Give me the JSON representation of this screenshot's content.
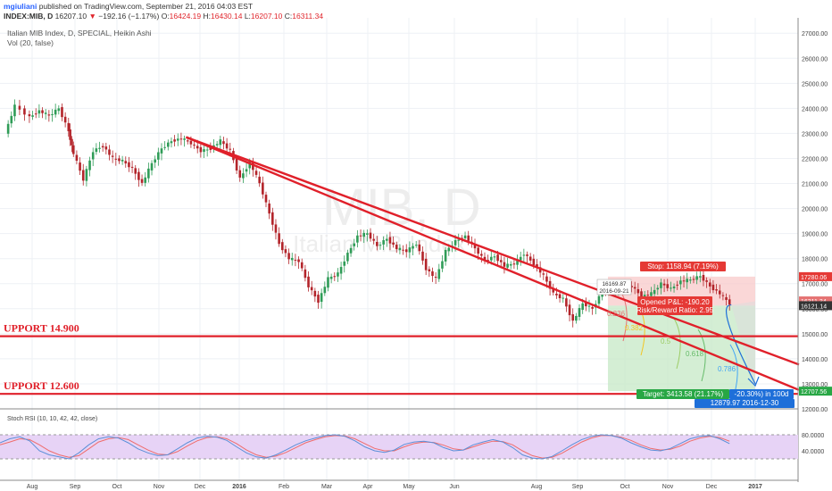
{
  "header": {
    "author": "mgiuliani",
    "published": "published on TradingView.com, September 21, 2016 04:03 EST",
    "symbol": "INDEX:MIB, D",
    "arrow": "▼",
    "change": "−192.16 (−1.17%)",
    "ohlc": {
      "o_label": "O:",
      "o": "16424.19",
      "h_label": "H:",
      "h": "16430.14",
      "l_label": "L:",
      "l": "16207.10",
      "c_label": "C:",
      "c": "16311.34"
    },
    "last": "16207.10"
  },
  "legend": {
    "title": "Italian MIB Index, D, SPECIAL, Heikin Ashi",
    "volume": "Vol (20, false)"
  },
  "watermark": {
    "symbol": "MIB, D",
    "name": "Italian MIB Index"
  },
  "colors": {
    "up": "#2f9c57",
    "down": "#b3242a",
    "line": "#e0202a",
    "target": "#28a745",
    "stop": "#e53935"
  },
  "chart_data": {
    "type": "candlestick",
    "ylim": [
      12000,
      27400
    ],
    "y_ticks": [
      "27000.00",
      "26000.00",
      "25000.00",
      "24000.00",
      "23000.00",
      "22000.00",
      "21000.00",
      "20000.00",
      "19000.00",
      "18000.00",
      "17000.00",
      "16000.00",
      "15000.00",
      "14000.00",
      "13000.00",
      "12000.00"
    ],
    "x_ticks": [
      "Aug",
      "Sep",
      "Oct",
      "Nov",
      "Dec",
      "2016",
      "Feb",
      "Mar",
      "Apr",
      "May",
      "Jun",
      "Aug",
      "Sep",
      "Oct",
      "Nov",
      "Dec",
      "2017"
    ],
    "price_path": [
      [
        2015.58,
        23000
      ],
      [
        2015.6,
        24100
      ],
      [
        2015.63,
        23650
      ],
      [
        2015.65,
        23900
      ],
      [
        2015.67,
        23700
      ],
      [
        2015.69,
        24000
      ],
      [
        2015.71,
        23100
      ],
      [
        2015.72,
        22200
      ],
      [
        2015.74,
        21150
      ],
      [
        2015.76,
        22300
      ],
      [
        2015.78,
        22500
      ],
      [
        2015.8,
        22000
      ],
      [
        2015.82,
        21900
      ],
      [
        2015.84,
        21600
      ],
      [
        2015.86,
        21000
      ],
      [
        2015.88,
        21800
      ],
      [
        2015.9,
        22400
      ],
      [
        2015.92,
        22700
      ],
      [
        2015.94,
        22800
      ],
      [
        2015.96,
        22600
      ],
      [
        2015.98,
        22300
      ],
      [
        2016.0,
        22400
      ],
      [
        2016.02,
        22700
      ],
      [
        2016.04,
        22300
      ],
      [
        2016.06,
        21200
      ],
      [
        2016.08,
        21850
      ],
      [
        2016.1,
        21000
      ],
      [
        2016.12,
        19800
      ],
      [
        2016.14,
        18600
      ],
      [
        2016.16,
        18000
      ],
      [
        2016.18,
        17900
      ],
      [
        2016.2,
        16900
      ],
      [
        2016.22,
        16300
      ],
      [
        2016.24,
        17200
      ],
      [
        2016.26,
        17400
      ],
      [
        2016.28,
        18200
      ],
      [
        2016.3,
        18900
      ],
      [
        2016.32,
        19000
      ],
      [
        2016.34,
        18500
      ],
      [
        2016.36,
        18800
      ],
      [
        2016.38,
        18400
      ],
      [
        2016.4,
        18300
      ],
      [
        2016.42,
        18600
      ],
      [
        2016.44,
        17600
      ],
      [
        2016.46,
        17200
      ],
      [
        2016.48,
        18300
      ],
      [
        2016.5,
        18700
      ],
      [
        2016.52,
        18900
      ],
      [
        2016.54,
        18400
      ],
      [
        2016.56,
        17900
      ],
      [
        2016.58,
        18100
      ],
      [
        2016.6,
        17700
      ],
      [
        2016.62,
        17800
      ],
      [
        2016.64,
        18200
      ],
      [
        2016.66,
        17800
      ],
      [
        2016.68,
        17300
      ],
      [
        2016.7,
        16600
      ],
      [
        2016.72,
        16400
      ],
      [
        2016.74,
        15500
      ],
      [
        2016.76,
        16200
      ],
      [
        2016.78,
        16000
      ],
      [
        2016.8,
        16700
      ],
      [
        2016.82,
        16800
      ],
      [
        2016.84,
        16800
      ],
      [
        2016.86,
        16900
      ],
      [
        2016.88,
        16500
      ],
      [
        2016.9,
        16600
      ],
      [
        2016.92,
        17000
      ],
      [
        2016.94,
        16800
      ],
      [
        2016.96,
        17100
      ],
      [
        2016.98,
        17150
      ],
      [
        2017.0,
        17300
      ],
      [
        2017.02,
        16900
      ],
      [
        2017.04,
        16600
      ],
      [
        2017.06,
        16207
      ]
    ],
    "trendlines": [
      {
        "x1": 2015.95,
        "y1": 22850,
        "x2": 2017.02,
        "y2": 14900
      },
      {
        "x1": 2015.95,
        "y1": 22850,
        "x2": 2017.04,
        "y2": 15700
      }
    ],
    "support_lines": [
      {
        "label": "UPPORT 14.900",
        "y": 14900
      },
      {
        "label": "UPPORT 12.600",
        "y": 12600
      }
    ],
    "position": {
      "stop_label": "Stop: 1158.94 (7.19%)",
      "pnl_label": "Opened P&L: -190.20",
      "rr_label": "Risk/Reward Ratio: 2.95",
      "target_label": "Target: 3413.58 (21.17%)",
      "projection_label": "-20.30%) in 100d",
      "entry_value": "16169.87",
      "entry_date": "2016-09-21",
      "proj_value": "12879.97",
      "proj_date": "2016-12-30",
      "stop_price": 17280.06,
      "entry_price": 16121.14,
      "target_price": 12707.56
    },
    "fib_labels": [
      "0.236",
      "0.382",
      "0.5",
      "0.618",
      "0.786"
    ],
    "price_badges": [
      {
        "text": "17280.06",
        "y": 17280.06,
        "color": "#e53935"
      },
      {
        "text": "16311.34",
        "y": 16311.34,
        "color": "#e57373"
      },
      {
        "text": "16121.14",
        "y": 16121.14,
        "color": "#333333"
      },
      {
        "text": "12707.56",
        "y": 12707.56,
        "color": "#28a745"
      }
    ],
    "oscillator": {
      "title": "Stoch RSI (10, 10, 42, 42, close)",
      "ylim": [
        0,
        100
      ],
      "y_ticks": [
        "80.0000",
        "40.0000"
      ],
      "k": [
        60,
        70,
        75,
        65,
        40,
        30,
        25,
        20,
        35,
        55,
        70,
        75,
        72,
        60,
        45,
        35,
        28,
        30,
        45,
        60,
        72,
        76,
        74,
        66,
        50,
        35,
        25,
        22,
        30,
        42,
        55,
        65,
        72,
        78,
        80,
        76,
        65,
        50,
        40,
        36,
        42,
        56,
        62,
        64,
        60,
        48,
        40,
        42,
        55,
        62,
        68,
        62,
        48,
        30,
        22,
        20,
        26,
        40,
        55,
        68,
        76,
        80,
        78,
        72,
        60,
        50,
        42,
        40,
        46,
        58,
        70,
        76,
        78,
        70,
        58
      ],
      "d": [
        55,
        62,
        70,
        68,
        55,
        40,
        30,
        24,
        28,
        45,
        62,
        70,
        73,
        68,
        55,
        42,
        32,
        30,
        38,
        52,
        65,
        73,
        75,
        70,
        58,
        42,
        30,
        24,
        27,
        36,
        48,
        60,
        68,
        75,
        78,
        77,
        70,
        58,
        46,
        40,
        40,
        50,
        58,
        62,
        61,
        54,
        45,
        42,
        50,
        58,
        64,
        63,
        55,
        40,
        28,
        22,
        24,
        34,
        48,
        62,
        72,
        78,
        78,
        74,
        66,
        55,
        46,
        42,
        44,
        52,
        64,
        72,
        76,
        73,
        64
      ]
    }
  }
}
